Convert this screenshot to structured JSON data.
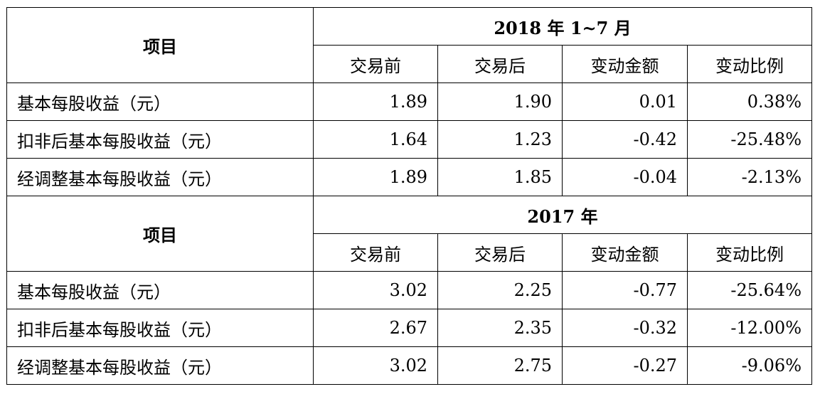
{
  "sections": [
    {
      "item_header": "项目",
      "period": "2018 年 1~7 月",
      "columns": [
        "交易前",
        "交易后",
        "变动金额",
        "变动比例"
      ],
      "rows": [
        {
          "label": "基本每股收益（元）",
          "values": [
            "1.89",
            "1.90",
            "0.01",
            "0.38%"
          ]
        },
        {
          "label": "扣非后基本每股收益（元）",
          "values": [
            "1.64",
            "1.23",
            "-0.42",
            "-25.48%"
          ]
        },
        {
          "label": "经调整基本每股收益（元）",
          "values": [
            "1.89",
            "1.85",
            "-0.04",
            "-2.13%"
          ]
        }
      ]
    },
    {
      "item_header": "项目",
      "period": "2017 年",
      "columns": [
        "交易前",
        "交易后",
        "变动金额",
        "变动比例"
      ],
      "rows": [
        {
          "label": "基本每股收益（元）",
          "values": [
            "3.02",
            "2.25",
            "-0.77",
            "-25.64%"
          ]
        },
        {
          "label": "扣非后基本每股收益（元）",
          "values": [
            "2.67",
            "2.35",
            "-0.32",
            "-12.00%"
          ]
        },
        {
          "label": "经调整基本每股收益（元）",
          "values": [
            "3.02",
            "2.75",
            "-0.27",
            "-9.06%"
          ]
        }
      ]
    }
  ]
}
